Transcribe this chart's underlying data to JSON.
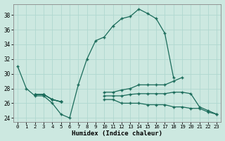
{
  "xlabel": "Humidex (Indice chaleur)",
  "background_color": "#cce8e0",
  "grid_color": "#b0d8d0",
  "line_color": "#1a6b5a",
  "xlim": [
    -0.5,
    23.5
  ],
  "ylim": [
    23.5,
    39.5
  ],
  "xticks": [
    0,
    1,
    2,
    3,
    4,
    5,
    6,
    7,
    8,
    9,
    10,
    11,
    12,
    13,
    14,
    15,
    16,
    17,
    18,
    19,
    20,
    21,
    22,
    23
  ],
  "yticks": [
    24,
    26,
    28,
    30,
    32,
    34,
    36,
    38
  ],
  "series": [
    [
      31,
      28,
      27,
      27,
      26,
      24.5,
      24,
      28.5,
      32,
      34.5,
      35,
      36.5,
      37.5,
      37.8,
      38.8,
      38.2,
      37.5,
      35.5,
      29.5,
      null,
      null,
      null,
      null,
      null
    ],
    [
      null,
      null,
      27.2,
      27.2,
      26.5,
      26.2,
      null,
      null,
      null,
      null,
      27.5,
      27.5,
      27.8,
      28,
      28.5,
      28.5,
      28.5,
      28.5,
      29,
      29.5,
      null,
      null,
      null,
      null
    ],
    [
      null,
      null,
      27.2,
      27.2,
      26.5,
      26.2,
      null,
      null,
      null,
      null,
      27.0,
      27.0,
      27.0,
      27.2,
      27.3,
      27.3,
      27.3,
      27.3,
      27.5,
      27.5,
      27.3,
      25.5,
      25.0,
      24.5
    ],
    [
      null,
      null,
      27.2,
      27.2,
      26.5,
      26.2,
      null,
      null,
      null,
      null,
      26.5,
      26.5,
      26.0,
      26.0,
      26.0,
      25.8,
      25.8,
      25.8,
      25.5,
      25.5,
      25.3,
      25.3,
      24.8,
      24.5
    ]
  ]
}
